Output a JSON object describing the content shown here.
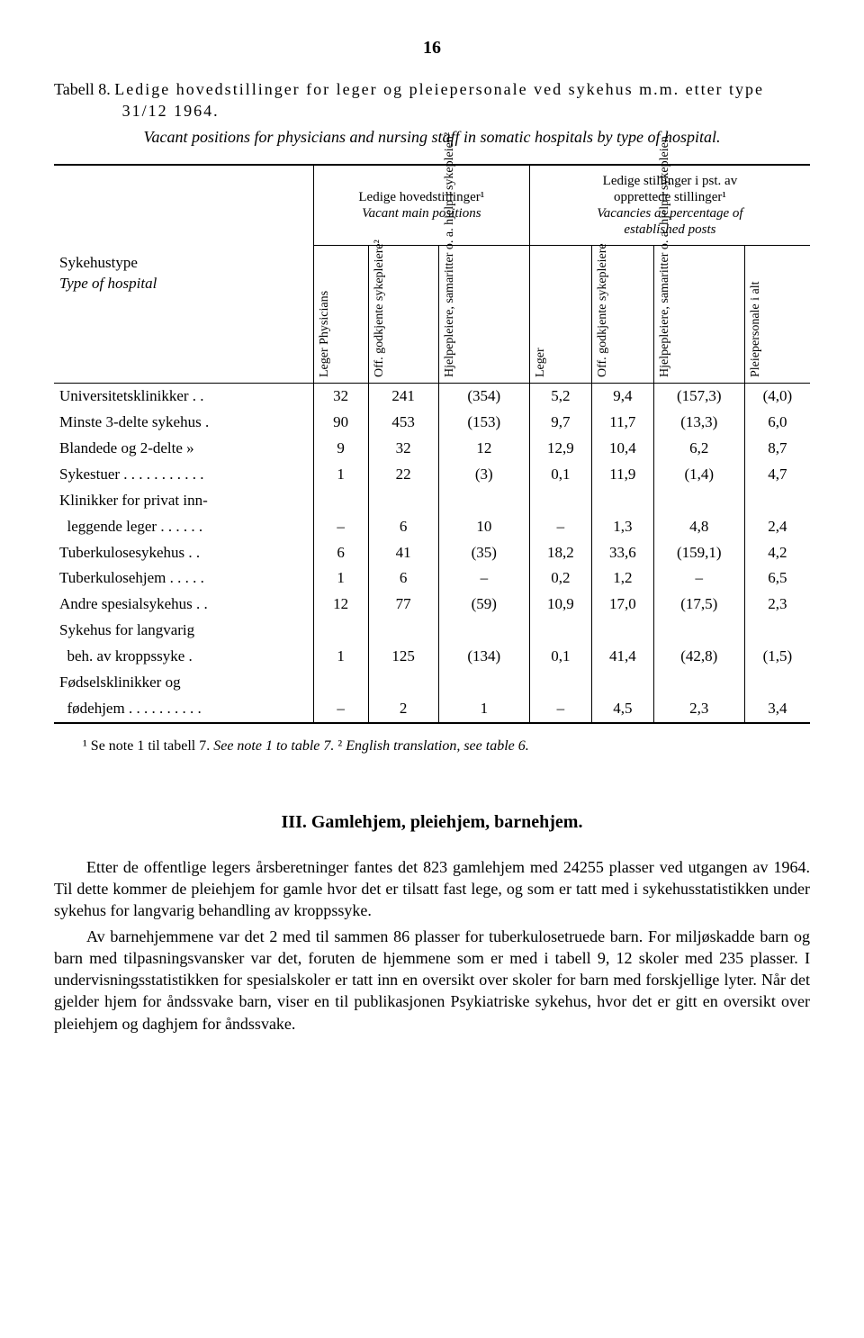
{
  "pageNumber": "16",
  "tableLabel": "Tabell 8. ",
  "tableTitleMain": "Ledige hovedstillinger for leger og pleiepersonale ved sykehus m.m. etter type 31/12 1964.",
  "tableSubtitle": "Vacant positions for physicians and nursing staff in somatic hospitals by type of hospital.",
  "headerGroup1": "Ledige hovedstillinger¹\nVacant main positions",
  "headerGroup2": "Ledige stillinger i pst. av\nopprettede stillinger¹\nVacancies as percentage of\nestablished posts",
  "rowGroupLabel": "Sykehustype\nType of hospital",
  "colHeaders": {
    "c1": "Leger\nPhysicians",
    "c2": "Off. godkjente\nsykepleiere²",
    "c3": "Hjelpepleiere,\nsamaritter o. a.\nhjelp i\nsykepleien²",
    "c4": "Leger",
    "c5": "Off. godkjente\nsykepleiere",
    "c6": "Hjelpepleiere,\nsamaritter o. a.\nhjelp i\nsykepleien",
    "c7": "Pleiepersonale\ni alt"
  },
  "rows": [
    {
      "label": "Universitetsklinikker . .",
      "c1": "32",
      "c2": "241",
      "c3": "(354)",
      "c4": "5,2",
      "c5": "9,4",
      "c6": "(157,3)",
      "c7": "(4,0)"
    },
    {
      "label": "Minste 3-delte sykehus .",
      "c1": "90",
      "c2": "453",
      "c3": "(153)",
      "c4": "9,7",
      "c5": "11,7",
      "c6": "(13,3)",
      "c7": "6,0"
    },
    {
      "label": "Blandede og 2-delte »",
      "c1": "9",
      "c2": "32",
      "c3": "12",
      "c4": "12,9",
      "c5": "10,4",
      "c6": "6,2",
      "c7": "8,7"
    },
    {
      "label": "Sykestuer . . . . . . . . . . .",
      "c1": "1",
      "c2": "22",
      "c3": "(3)",
      "c4": "0,1",
      "c5": "11,9",
      "c6": "(1,4)",
      "c7": "4,7"
    },
    {
      "label": "Klinikker for privat inn-",
      "c1": "",
      "c2": "",
      "c3": "",
      "c4": "",
      "c5": "",
      "c6": "",
      "c7": ""
    },
    {
      "label": "  leggende leger . . . . . .",
      "c1": "–",
      "c2": "6",
      "c3": "10",
      "c4": "–",
      "c5": "1,3",
      "c6": "4,8",
      "c7": "2,4"
    },
    {
      "label": "Tuberkulosesykehus . .",
      "c1": "6",
      "c2": "41",
      "c3": "(35)",
      "c4": "18,2",
      "c5": "33,6",
      "c6": "(159,1)",
      "c7": "4,2"
    },
    {
      "label": "Tuberkulosehjem . . . . .",
      "c1": "1",
      "c2": "6",
      "c3": "–",
      "c4": "0,2",
      "c5": "1,2",
      "c6": "–",
      "c7": "6,5"
    },
    {
      "label": "Andre spesialsykehus . .",
      "c1": "12",
      "c2": "77",
      "c3": "(59)",
      "c4": "10,9",
      "c5": "17,0",
      "c6": "(17,5)",
      "c7": "2,3"
    },
    {
      "label": "Sykehus for langvarig",
      "c1": "",
      "c2": "",
      "c3": "",
      "c4": "",
      "c5": "",
      "c6": "",
      "c7": ""
    },
    {
      "label": "  beh. av kroppssyke .",
      "c1": "1",
      "c2": "125",
      "c3": "(134)",
      "c4": "0,1",
      "c5": "41,4",
      "c6": "(42,8)",
      "c7": "(1,5)"
    },
    {
      "label": "Fødselsklinikker og",
      "c1": "",
      "c2": "",
      "c3": "",
      "c4": "",
      "c5": "",
      "c6": "",
      "c7": ""
    },
    {
      "label": "  fødehjem . . . . . . . . . .",
      "c1": "–",
      "c2": "2",
      "c3": "1",
      "c4": "–",
      "c5": "4,5",
      "c6": "2,3",
      "c7": "3,4"
    }
  ],
  "footnote": "¹ Se note 1 til tabell 7. See note 1 to table 7. ² English translation, see table 6.",
  "sectionTitle": "III. Gamlehjem, pleiehjem, barnehjem.",
  "para1": "Etter de offentlige legers årsberetninger fantes det 823 gamlehjem med 24255 plasser ved utgangen av 1964. Til dette kommer de pleiehjem for gamle hvor det er tilsatt fast lege, og som er tatt med i sykehusstatistikken under sykehus for langvarig behandling av kroppssyke.",
  "para2": "Av barnehjemmene var det 2 med til sammen 86 plasser for tuberkulosetruede barn. For miljøskadde barn og barn med tilpasningsvansker var det, foruten de hjemmene som er med i tabell 9, 12 skoler med 235 plasser. I undervisningsstatistikken for spesialskoler er tatt inn en oversikt over skoler for barn med forskjellige lyter. Når det gjelder hjem for åndssvake barn, viser en til publikasjonen Psykiatriske sykehus, hvor det er gitt en oversikt over pleiehjem og daghjem for åndssvake."
}
